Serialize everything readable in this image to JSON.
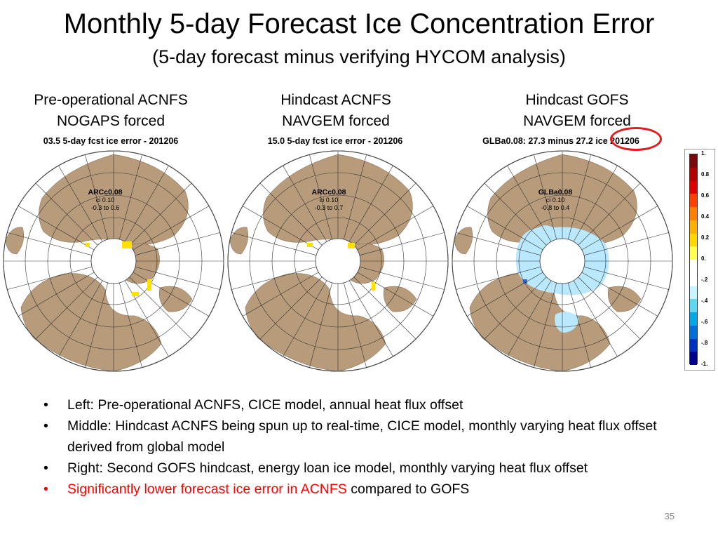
{
  "slide": {
    "title": "Monthly 5-day Forecast Ice Concentration Error",
    "subtitle": "(5-day forecast minus verifying HYCOM analysis)",
    "page_number": "35"
  },
  "panels": [
    {
      "heading_line1": "Pre-operational ACNFS",
      "heading_line2": "NOGAPS forced",
      "map_label": "03.5 5-day fcst ice error - 201206",
      "model": "ARCc0.08",
      "ci": "ci 0.10",
      "range": "-0.3 to 0.6"
    },
    {
      "heading_line1": "Hindcast ACNFS",
      "heading_line2": "NAVGEM forced",
      "map_label": "15.0 5-day fcst ice error - 201206",
      "model": "ARCc0.08",
      "ci": "ci 0.10",
      "range": "-0.3 to 0.7"
    },
    {
      "heading_line1": "Hindcast GOFS",
      "heading_line2": "NAVGEM forced",
      "map_label": "GLBa0.08: 27.3 minus 27.2 ice 201206",
      "model": "GLBa0.08",
      "ci": "ci 0.10",
      "range": "-0.8 to 0.4"
    }
  ],
  "colorbar": {
    "ticks": [
      "1.",
      "0.8",
      "0.6",
      "0.4",
      "0.2",
      "0.",
      "-.2",
      "-.4",
      "-.6",
      "-.8",
      "-1."
    ],
    "colors": [
      "#7a0a0a",
      "#b30000",
      "#e00000",
      "#ff4000",
      "#ff8000",
      "#ffb000",
      "#ffd800",
      "#ffff50",
      "#ffffff",
      "#ffffff",
      "#c8f4ff",
      "#60d8f0",
      "#00a8e8",
      "#0070d8",
      "#0030c0",
      "#00008c"
    ],
    "highlight_color": "#e41a1c"
  },
  "map_colors": {
    "land": "#b89b7a",
    "ocean": "#ffffff",
    "grid": "#333333",
    "positive_error": "#ffe000",
    "negative_error": "#b9e8ff"
  },
  "bullets": [
    {
      "text": "Left: Pre-operational ACNFS, CICE model, annual heat flux offset"
    },
    {
      "text": "Middle: Hindcast ACNFS being spun up to real-time, CICE model, monthly varying heat flux offset derived from global model"
    },
    {
      "text": "Right:  Second GOFS hindcast, energy loan ice model, monthly varying heat flux offset"
    },
    {
      "text_red": "Significantly lower forecast ice error in ACNFS",
      "text_black": " compared to GOFS"
    }
  ]
}
